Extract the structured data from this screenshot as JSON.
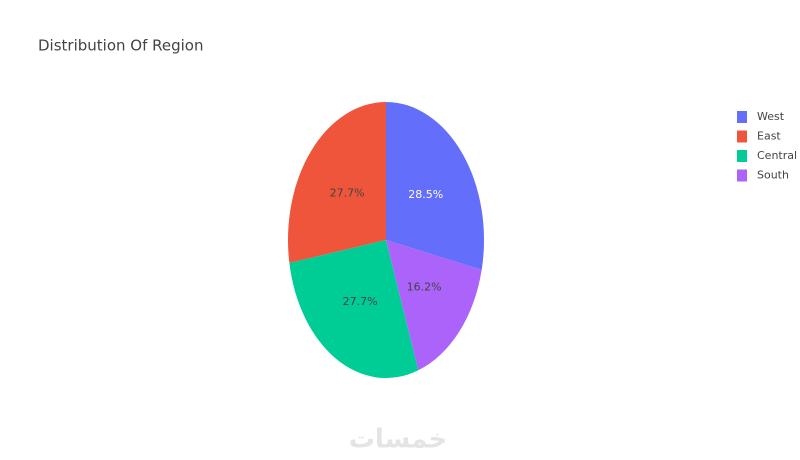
{
  "chart_data": {
    "type": "pie",
    "title": "Distribution Of Region",
    "categories": [
      "West",
      "East",
      "Central",
      "South"
    ],
    "values": [
      28.5,
      27.7,
      27.7,
      16.2
    ],
    "value_labels": [
      "28.5%",
      "27.7%",
      "27.7%",
      "16.2%"
    ],
    "colors": [
      "#636efa",
      "#ef553b",
      "#00cc96",
      "#ab63fa"
    ],
    "legend": "top-right"
  },
  "watermark": "خمسات"
}
